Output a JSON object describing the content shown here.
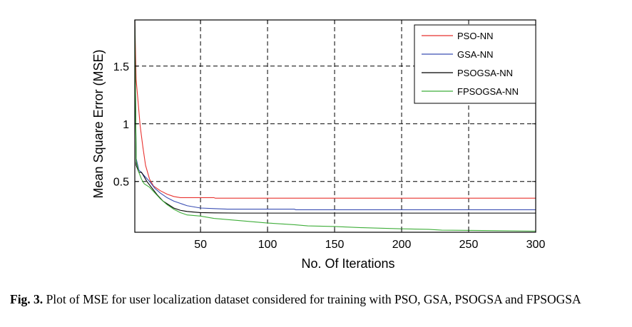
{
  "chart_data": {
    "type": "line",
    "title": "",
    "xlabel": "No. Of Iterations",
    "ylabel": "Mean Square Error (MSE)",
    "xlim": [
      1,
      300
    ],
    "ylim": [
      0.06,
      1.9
    ],
    "xticks": [
      50,
      100,
      150,
      200,
      250,
      300
    ],
    "yticks": [
      0.5,
      1,
      1.5
    ],
    "grid": true,
    "grid_style": "dashed",
    "legend_position": "top-right",
    "series": [
      {
        "name": "PSO-NN",
        "color": "#e8322f",
        "points": [
          [
            1,
            1.9
          ],
          [
            2,
            1.38
          ],
          [
            3,
            1.25
          ],
          [
            5,
            0.98
          ],
          [
            7,
            0.8
          ],
          [
            9,
            0.64
          ],
          [
            12,
            0.52
          ],
          [
            15,
            0.46
          ],
          [
            20,
            0.42
          ],
          [
            25,
            0.39
          ],
          [
            30,
            0.37
          ],
          [
            35,
            0.36
          ],
          [
            60,
            0.36
          ],
          [
            61,
            0.355
          ],
          [
            300,
            0.355
          ]
        ]
      },
      {
        "name": "GSA-NN",
        "color": "#3b4fb4",
        "points": [
          [
            1,
            1.9
          ],
          [
            2,
            0.7
          ],
          [
            4,
            0.6
          ],
          [
            8,
            0.55
          ],
          [
            12,
            0.5
          ],
          [
            16,
            0.44
          ],
          [
            20,
            0.4
          ],
          [
            25,
            0.36
          ],
          [
            30,
            0.33
          ],
          [
            35,
            0.31
          ],
          [
            40,
            0.29
          ],
          [
            45,
            0.28
          ],
          [
            50,
            0.27
          ],
          [
            60,
            0.265
          ],
          [
            70,
            0.26
          ],
          [
            80,
            0.26
          ],
          [
            120,
            0.26
          ],
          [
            121,
            0.255
          ],
          [
            300,
            0.255
          ]
        ]
      },
      {
        "name": "PSOGSA-NN",
        "color": "#000000",
        "points": [
          [
            1,
            1.9
          ],
          [
            2,
            0.64
          ],
          [
            4,
            0.58
          ],
          [
            6,
            0.58
          ],
          [
            8,
            0.54
          ],
          [
            10,
            0.5
          ],
          [
            14,
            0.44
          ],
          [
            18,
            0.38
          ],
          [
            22,
            0.33
          ],
          [
            26,
            0.3
          ],
          [
            30,
            0.27
          ],
          [
            35,
            0.25
          ],
          [
            40,
            0.24
          ],
          [
            45,
            0.235
          ],
          [
            50,
            0.23
          ],
          [
            60,
            0.228
          ],
          [
            80,
            0.226
          ],
          [
            300,
            0.226
          ]
        ]
      },
      {
        "name": "FPSOGSA-NN",
        "color": "#3fae3a",
        "points": [
          [
            1,
            1.9
          ],
          [
            2,
            0.68
          ],
          [
            4,
            0.58
          ],
          [
            6,
            0.52
          ],
          [
            8,
            0.48
          ],
          [
            12,
            0.45
          ],
          [
            16,
            0.4
          ],
          [
            20,
            0.35
          ],
          [
            25,
            0.3
          ],
          [
            30,
            0.26
          ],
          [
            35,
            0.23
          ],
          [
            40,
            0.21
          ],
          [
            50,
            0.2
          ],
          [
            60,
            0.18
          ],
          [
            70,
            0.17
          ],
          [
            80,
            0.16
          ],
          [
            90,
            0.15
          ],
          [
            100,
            0.14
          ],
          [
            120,
            0.125
          ],
          [
            130,
            0.115
          ],
          [
            150,
            0.11
          ],
          [
            170,
            0.1
          ],
          [
            200,
            0.09
          ],
          [
            220,
            0.085
          ],
          [
            230,
            0.078
          ],
          [
            260,
            0.075
          ],
          [
            300,
            0.07
          ]
        ]
      }
    ]
  },
  "caption": {
    "label": "Fig. 3.",
    "text": "Plot of MSE for user localization dataset considered for training with PSO, GSA, PSOGSA and FPSOGSA"
  }
}
